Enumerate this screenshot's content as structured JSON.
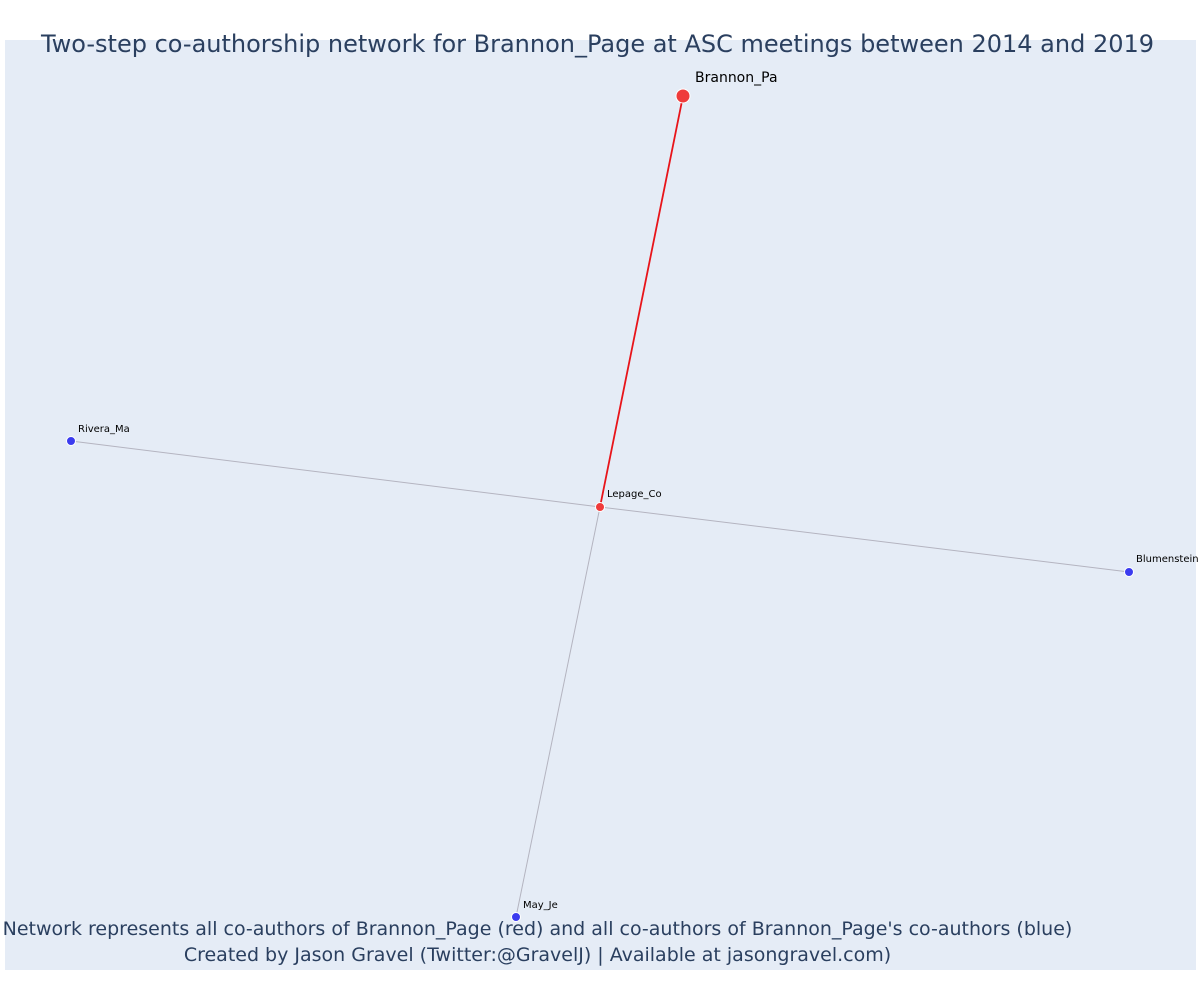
{
  "title": "Two-step co-authorship network for Brannon_Page at ASC meetings between 2014 and 2019",
  "caption": {
    "line1": "Network represents all co-authors of Brannon_Page (red) and all co-authors of Brannon_Page's co-authors (blue)",
    "line2": "Created by Jason Gravel (Twitter:@GravelJ) | Available at jasongravel.com)"
  },
  "colors": {
    "focal": "#ef3b3b",
    "first_step": "#ef3b3b",
    "second_step": "#3b3bef",
    "focal_edge": "#e8141a",
    "other_edge": "#b4b4c0",
    "background": "#e5ecf6",
    "title_text": "#2a3f5f"
  },
  "network": {
    "nodes": [
      {
        "id": "brannon",
        "label": "Brannon_Pa",
        "group": "focal"
      },
      {
        "id": "lepage",
        "label": "Lepage_Co",
        "group": "first_step"
      },
      {
        "id": "rivera",
        "label": "Rivera_Ma",
        "group": "second_step"
      },
      {
        "id": "blumenstein",
        "label": "Blumenstein",
        "group": "second_step"
      },
      {
        "id": "may",
        "label": "May_Je",
        "group": "second_step"
      }
    ],
    "edges": [
      {
        "source": "brannon",
        "target": "lepage",
        "type": "focal"
      },
      {
        "source": "rivera",
        "target": "lepage",
        "type": "other"
      },
      {
        "source": "lepage",
        "target": "blumenstein",
        "type": "other"
      },
      {
        "source": "lepage",
        "target": "may",
        "type": "other"
      }
    ]
  }
}
